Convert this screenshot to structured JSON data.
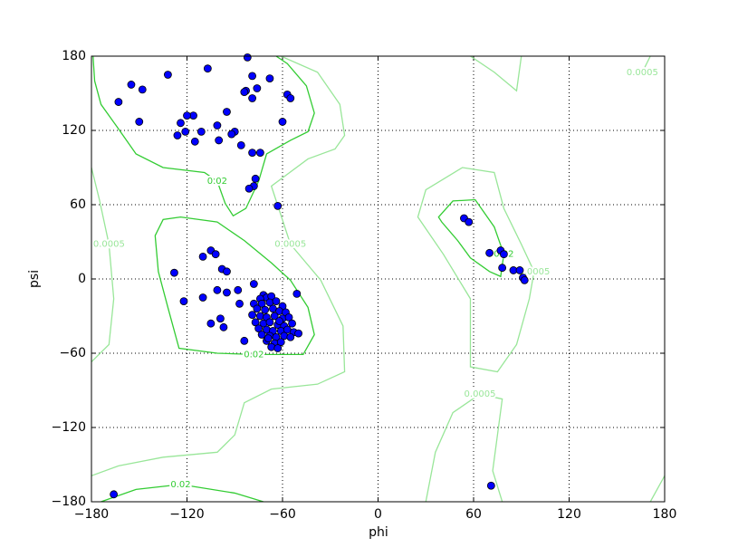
{
  "chart_data": {
    "type": "scatter",
    "xlabel": "phi",
    "ylabel": "psi",
    "xlim": [
      -180,
      180
    ],
    "ylim": [
      -180,
      180
    ],
    "xticks": [
      {
        "value": -180,
        "label": "−180"
      },
      {
        "value": -120,
        "label": "−120"
      },
      {
        "value": -60,
        "label": "−60"
      },
      0,
      60,
      120,
      180
    ],
    "yticks": [
      {
        "value": -180,
        "label": "−180"
      },
      {
        "value": -120,
        "label": "−120"
      },
      {
        "value": -60,
        "label": "−60"
      },
      0,
      60,
      120,
      180
    ],
    "grid": true,
    "color": "#0000ff",
    "x": [
      -163,
      -155,
      -148,
      -150,
      -132,
      -107,
      -82,
      -79,
      -68,
      -76,
      -83,
      -84,
      -57,
      -55,
      -60,
      -79,
      -95,
      -101,
      -90,
      -92,
      -100,
      -116,
      -120,
      -124,
      -121,
      -126,
      -111,
      -115,
      -86,
      -79,
      -74,
      -77,
      -78,
      -81,
      -63,
      -128,
      -105,
      -102,
      -110,
      -98,
      -95,
      -122,
      -110,
      -101,
      -95,
      -88,
      -105,
      -99,
      -97,
      -87,
      -78,
      -51,
      -84,
      -72,
      -70,
      -74,
      -67,
      -78,
      -73,
      -68,
      -64,
      -60,
      -76,
      -71,
      -66,
      -62,
      -58,
      -79,
      -74,
      -70,
      -65,
      -60,
      -56,
      -77,
      -72,
      -68,
      -63,
      -59,
      -54,
      -75,
      -70,
      -66,
      -61,
      -57,
      -53,
      -73,
      -68,
      -64,
      -59,
      -55,
      -70,
      -65,
      -61,
      -67,
      -63,
      -69,
      -62,
      -50,
      54,
      57,
      70,
      77,
      79,
      78,
      85,
      89,
      91,
      92,
      71,
      -166
    ],
    "values": [
      143,
      157,
      153,
      127,
      165,
      170,
      179,
      164,
      162,
      154,
      152,
      151,
      149,
      146,
      127,
      146,
      135,
      124,
      119,
      117,
      112,
      132,
      132,
      126,
      119,
      116,
      119,
      111,
      108,
      102,
      102,
      81,
      75,
      73,
      59,
      5,
      23,
      20,
      18,
      8,
      6,
      -18,
      -15,
      -9,
      -11,
      -9,
      -36,
      -32,
      -39,
      -20,
      -4,
      -12,
      -50,
      -13,
      -15,
      -16,
      -14,
      -20,
      -20,
      -19,
      -18,
      -22,
      -24,
      -25,
      -24,
      -26,
      -27,
      -29,
      -30,
      -31,
      -30,
      -32,
      -31,
      -35,
      -36,
      -35,
      -37,
      -38,
      -36,
      -40,
      -41,
      -42,
      -42,
      -41,
      -43,
      -45,
      -46,
      -47,
      -46,
      -47,
      -50,
      -52,
      -51,
      -55,
      -56,
      -48,
      -34,
      -44,
      49,
      46,
      21,
      23,
      20,
      9,
      7,
      7,
      1,
      -1,
      -167,
      -174
    ],
    "contours": [
      {
        "label": "0.02",
        "color": "#33cc33",
        "closed": false,
        "phi": [
          -179,
          -178,
          -174,
          -164,
          -152,
          -135,
          -109,
          -101,
          -96,
          -91,
          -83,
          -75,
          -70,
          -55,
          -44,
          -40,
          -45,
          -57,
          -64
        ],
        "psi": [
          180,
          160,
          141,
          123,
          101,
          90,
          86,
          79,
          61,
          51,
          57,
          79,
          101,
          112,
          119,
          134,
          156,
          174,
          180
        ]
      },
      {
        "label": "0.02",
        "color": "#33cc33",
        "closed": true,
        "phi": [
          -135,
          -140,
          -138,
          -132,
          -125,
          -101,
          -78,
          -47,
          -40,
          -44,
          -55,
          -67,
          -84,
          -101,
          -124
        ],
        "psi": [
          48,
          35,
          6,
          -23,
          -56,
          -60,
          -61,
          -61,
          -45,
          -23,
          -1,
          13,
          31,
          46,
          50
        ]
      },
      {
        "label": "0.02",
        "color": "#33cc33",
        "closed": true,
        "phi": [
          38,
          47,
          61,
          73,
          79,
          77,
          70,
          58,
          50,
          40
        ],
        "psi": [
          50,
          63,
          64,
          42,
          20,
          2,
          6,
          17,
          31,
          46
        ]
      },
      {
        "label": "0.02",
        "color": "#33cc33",
        "closed": false,
        "phi": [
          -174,
          -152,
          -124,
          -90,
          -72
        ],
        "psi": [
          -180,
          -170,
          -166,
          -173,
          -180
        ]
      },
      {
        "label": "0.0005",
        "color": "#99e699",
        "closed": false,
        "phi": [
          -61,
          -38,
          -24,
          -21,
          -27,
          -44,
          -67,
          -55,
          -36,
          -22,
          -21,
          -38,
          -67,
          -84,
          -90,
          -101,
          -135,
          -163,
          -180
        ],
        "psi": [
          180,
          167,
          141,
          116,
          105,
          97,
          75,
          28,
          -1,
          -38,
          -75,
          -85,
          -89,
          -100,
          -126,
          -140,
          -144,
          -151,
          -159
        ]
      },
      {
        "label": "0.0005",
        "color": "#99e699",
        "closed": false,
        "phi": [
          -180,
          -175,
          -169,
          -166,
          -169,
          -180
        ],
        "psi": [
          90,
          64,
          28,
          -16,
          -53,
          -67
        ]
      },
      {
        "label": "0.0005",
        "color": "#99e699",
        "closed": true,
        "phi": [
          30,
          53,
          73,
          79,
          90,
          98,
          95,
          87,
          75,
          58,
          58,
          41,
          25
        ],
        "psi": [
          72,
          90,
          86,
          57,
          28,
          6,
          -16,
          -53,
          -75,
          -71,
          -16,
          20,
          50
        ]
      },
      {
        "label": "0.0005",
        "color": "#99e699",
        "closed": false,
        "phi": [
          30,
          36,
          47,
          64,
          78,
          75,
          72,
          78
        ],
        "psi": [
          -180,
          -140,
          -108,
          -93,
          -97,
          -126,
          -155,
          -180
        ]
      },
      {
        "label": "0.0005",
        "color": "#99e699",
        "closed": false,
        "phi": [
          166,
          171
        ],
        "psi": [
          167,
          180
        ]
      },
      {
        "color": "#99e699",
        "closed": false,
        "phi": [
          58,
          73,
          87,
          90
        ],
        "psi": [
          180,
          167,
          152,
          180
        ]
      },
      {
        "color": "#99e699",
        "closed": false,
        "phi": [
          171,
          180
        ],
        "psi": [
          -180,
          -159
        ]
      }
    ]
  }
}
